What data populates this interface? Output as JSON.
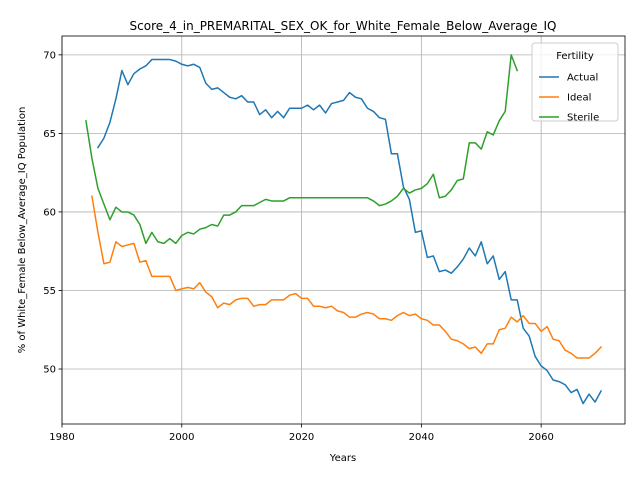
{
  "chart_data": {
    "type": "line",
    "title": "Score_4_in_PREMARITAL_SEX_OK_for_White_Female_Below_Average_IQ",
    "xlabel": "Years",
    "ylabel": "% of White_Female Below_Average_IQ Population",
    "xlim": [
      1980,
      2074
    ],
    "ylim": [
      46.5,
      71.2
    ],
    "xticks": [
      1980,
      2000,
      2020,
      2040,
      2060
    ],
    "yticks": [
      50,
      55,
      60,
      65,
      70
    ],
    "grid": true,
    "legend": {
      "title": "Fertility",
      "placement": "top-right"
    },
    "series": [
      {
        "name": "Actual",
        "color": "#1f77b4",
        "points": [
          [
            1986,
            64.1
          ],
          [
            1987,
            64.7
          ],
          [
            1988,
            65.7
          ],
          [
            1989,
            67.2
          ],
          [
            1990,
            69.0
          ],
          [
            1991,
            68.1
          ],
          [
            1992,
            68.8
          ],
          [
            1993,
            69.1
          ],
          [
            1994,
            69.3
          ],
          [
            1995,
            69.7
          ],
          [
            1996,
            69.7
          ],
          [
            1997,
            69.7
          ],
          [
            1998,
            69.7
          ],
          [
            1999,
            69.6
          ],
          [
            2000,
            69.4
          ],
          [
            2001,
            69.3
          ],
          [
            2002,
            69.4
          ],
          [
            2003,
            69.2
          ],
          [
            2004,
            68.2
          ],
          [
            2005,
            67.8
          ],
          [
            2006,
            67.9
          ],
          [
            2007,
            67.6
          ],
          [
            2008,
            67.3
          ],
          [
            2009,
            67.2
          ],
          [
            2010,
            67.4
          ],
          [
            2011,
            67.0
          ],
          [
            2012,
            67.0
          ],
          [
            2013,
            66.2
          ],
          [
            2014,
            66.5
          ],
          [
            2015,
            66.0
          ],
          [
            2016,
            66.4
          ],
          [
            2017,
            66.0
          ],
          [
            2018,
            66.6
          ],
          [
            2019,
            66.6
          ],
          [
            2020,
            66.6
          ],
          [
            2021,
            66.8
          ],
          [
            2022,
            66.5
          ],
          [
            2023,
            66.8
          ],
          [
            2024,
            66.3
          ],
          [
            2025,
            66.9
          ],
          [
            2026,
            67.0
          ],
          [
            2027,
            67.1
          ],
          [
            2028,
            67.6
          ],
          [
            2029,
            67.3
          ],
          [
            2030,
            67.2
          ],
          [
            2031,
            66.6
          ],
          [
            2032,
            66.4
          ],
          [
            2033,
            66.0
          ],
          [
            2034,
            65.9
          ],
          [
            2035,
            63.7
          ],
          [
            2036,
            63.7
          ],
          [
            2037,
            61.6
          ],
          [
            2038,
            60.8
          ],
          [
            2039,
            58.7
          ],
          [
            2040,
            58.8
          ],
          [
            2041,
            57.1
          ],
          [
            2042,
            57.2
          ],
          [
            2043,
            56.2
          ],
          [
            2044,
            56.3
          ],
          [
            2045,
            56.1
          ],
          [
            2046,
            56.5
          ],
          [
            2047,
            57.0
          ],
          [
            2048,
            57.7
          ],
          [
            2049,
            57.2
          ],
          [
            2050,
            58.1
          ],
          [
            2051,
            56.7
          ],
          [
            2052,
            57.2
          ],
          [
            2053,
            55.7
          ],
          [
            2054,
            56.2
          ],
          [
            2055,
            54.4
          ],
          [
            2056,
            54.4
          ],
          [
            2057,
            52.6
          ],
          [
            2058,
            52.1
          ],
          [
            2059,
            50.8
          ],
          [
            2060,
            50.2
          ],
          [
            2061,
            49.9
          ],
          [
            2062,
            49.3
          ],
          [
            2063,
            49.2
          ],
          [
            2064,
            49.0
          ],
          [
            2065,
            48.5
          ],
          [
            2066,
            48.7
          ],
          [
            2067,
            47.8
          ],
          [
            2068,
            48.4
          ],
          [
            2069,
            47.9
          ],
          [
            2070,
            48.6
          ]
        ]
      },
      {
        "name": "Ideal",
        "color": "#ff7f0e",
        "points": [
          [
            1985,
            61.0
          ],
          [
            1986,
            58.7
          ],
          [
            1987,
            56.7
          ],
          [
            1988,
            56.8
          ],
          [
            1989,
            58.1
          ],
          [
            1990,
            57.8
          ],
          [
            1991,
            57.9
          ],
          [
            1992,
            58.0
          ],
          [
            1993,
            56.8
          ],
          [
            1994,
            56.9
          ],
          [
            1995,
            55.9
          ],
          [
            1996,
            55.9
          ],
          [
            1997,
            55.9
          ],
          [
            1998,
            55.9
          ],
          [
            1999,
            55.0
          ],
          [
            2000,
            55.1
          ],
          [
            2001,
            55.2
          ],
          [
            2002,
            55.1
          ],
          [
            2003,
            55.5
          ],
          [
            2004,
            54.9
          ],
          [
            2005,
            54.6
          ],
          [
            2006,
            53.9
          ],
          [
            2007,
            54.2
          ],
          [
            2008,
            54.1
          ],
          [
            2009,
            54.4
          ],
          [
            2010,
            54.5
          ],
          [
            2011,
            54.5
          ],
          [
            2012,
            54.0
          ],
          [
            2013,
            54.1
          ],
          [
            2014,
            54.1
          ],
          [
            2015,
            54.4
          ],
          [
            2016,
            54.4
          ],
          [
            2017,
            54.4
          ],
          [
            2018,
            54.7
          ],
          [
            2019,
            54.8
          ],
          [
            2020,
            54.5
          ],
          [
            2021,
            54.5
          ],
          [
            2022,
            54.0
          ],
          [
            2023,
            54.0
          ],
          [
            2024,
            53.9
          ],
          [
            2025,
            54.0
          ],
          [
            2026,
            53.7
          ],
          [
            2027,
            53.6
          ],
          [
            2028,
            53.3
          ],
          [
            2029,
            53.3
          ],
          [
            2030,
            53.5
          ],
          [
            2031,
            53.6
          ],
          [
            2032,
            53.5
          ],
          [
            2033,
            53.2
          ],
          [
            2034,
            53.2
          ],
          [
            2035,
            53.1
          ],
          [
            2036,
            53.4
          ],
          [
            2037,
            53.6
          ],
          [
            2038,
            53.4
          ],
          [
            2039,
            53.5
          ],
          [
            2040,
            53.2
          ],
          [
            2041,
            53.1
          ],
          [
            2042,
            52.8
          ],
          [
            2043,
            52.8
          ],
          [
            2044,
            52.4
          ],
          [
            2045,
            51.9
          ],
          [
            2046,
            51.8
          ],
          [
            2047,
            51.6
          ],
          [
            2048,
            51.3
          ],
          [
            2049,
            51.4
          ],
          [
            2050,
            51.0
          ],
          [
            2051,
            51.6
          ],
          [
            2052,
            51.6
          ],
          [
            2053,
            52.5
          ],
          [
            2054,
            52.6
          ],
          [
            2055,
            53.3
          ],
          [
            2056,
            53.0
          ],
          [
            2057,
            53.4
          ],
          [
            2058,
            52.9
          ],
          [
            2059,
            52.9
          ],
          [
            2060,
            52.4
          ],
          [
            2061,
            52.7
          ],
          [
            2062,
            51.9
          ],
          [
            2063,
            51.8
          ],
          [
            2064,
            51.2
          ],
          [
            2065,
            51.0
          ],
          [
            2066,
            50.7
          ],
          [
            2067,
            50.7
          ],
          [
            2068,
            50.7
          ],
          [
            2069,
            51.0
          ],
          [
            2070,
            51.4
          ]
        ]
      },
      {
        "name": "Sterile",
        "color": "#2ca02c",
        "points": [
          [
            1984,
            65.8
          ],
          [
            1985,
            63.4
          ],
          [
            1986,
            61.5
          ],
          [
            1987,
            60.5
          ],
          [
            1988,
            59.5
          ],
          [
            1989,
            60.3
          ],
          [
            1990,
            60.0
          ],
          [
            1991,
            60.0
          ],
          [
            1992,
            59.8
          ],
          [
            1993,
            59.2
          ],
          [
            1994,
            58.0
          ],
          [
            1995,
            58.7
          ],
          [
            1996,
            58.1
          ],
          [
            1997,
            58.0
          ],
          [
            1998,
            58.3
          ],
          [
            1999,
            58.0
          ],
          [
            2000,
            58.5
          ],
          [
            2001,
            58.7
          ],
          [
            2002,
            58.6
          ],
          [
            2003,
            58.9
          ],
          [
            2004,
            59.0
          ],
          [
            2005,
            59.2
          ],
          [
            2006,
            59.1
          ],
          [
            2007,
            59.8
          ],
          [
            2008,
            59.8
          ],
          [
            2009,
            60.0
          ],
          [
            2010,
            60.4
          ],
          [
            2011,
            60.4
          ],
          [
            2012,
            60.4
          ],
          [
            2013,
            60.6
          ],
          [
            2014,
            60.8
          ],
          [
            2015,
            60.7
          ],
          [
            2016,
            60.7
          ],
          [
            2017,
            60.7
          ],
          [
            2018,
            60.9
          ],
          [
            2019,
            60.9
          ],
          [
            2020,
            60.9
          ],
          [
            2021,
            60.9
          ],
          [
            2022,
            60.9
          ],
          [
            2023,
            60.9
          ],
          [
            2024,
            60.9
          ],
          [
            2025,
            60.9
          ],
          [
            2026,
            60.9
          ],
          [
            2027,
            60.9
          ],
          [
            2028,
            60.9
          ],
          [
            2029,
            60.9
          ],
          [
            2030,
            60.9
          ],
          [
            2031,
            60.9
          ],
          [
            2032,
            60.7
          ],
          [
            2033,
            60.4
          ],
          [
            2034,
            60.5
          ],
          [
            2035,
            60.7
          ],
          [
            2036,
            61.0
          ],
          [
            2037,
            61.5
          ],
          [
            2038,
            61.2
          ],
          [
            2039,
            61.4
          ],
          [
            2040,
            61.5
          ],
          [
            2041,
            61.8
          ],
          [
            2042,
            62.4
          ],
          [
            2043,
            60.9
          ],
          [
            2044,
            61.0
          ],
          [
            2045,
            61.4
          ],
          [
            2046,
            62.0
          ],
          [
            2047,
            62.1
          ],
          [
            2048,
            64.4
          ],
          [
            2049,
            64.4
          ],
          [
            2050,
            64.0
          ],
          [
            2051,
            65.1
          ],
          [
            2052,
            64.9
          ],
          [
            2053,
            65.8
          ],
          [
            2054,
            66.4
          ],
          [
            2055,
            70.0
          ],
          [
            2056,
            69.0
          ]
        ]
      }
    ]
  }
}
